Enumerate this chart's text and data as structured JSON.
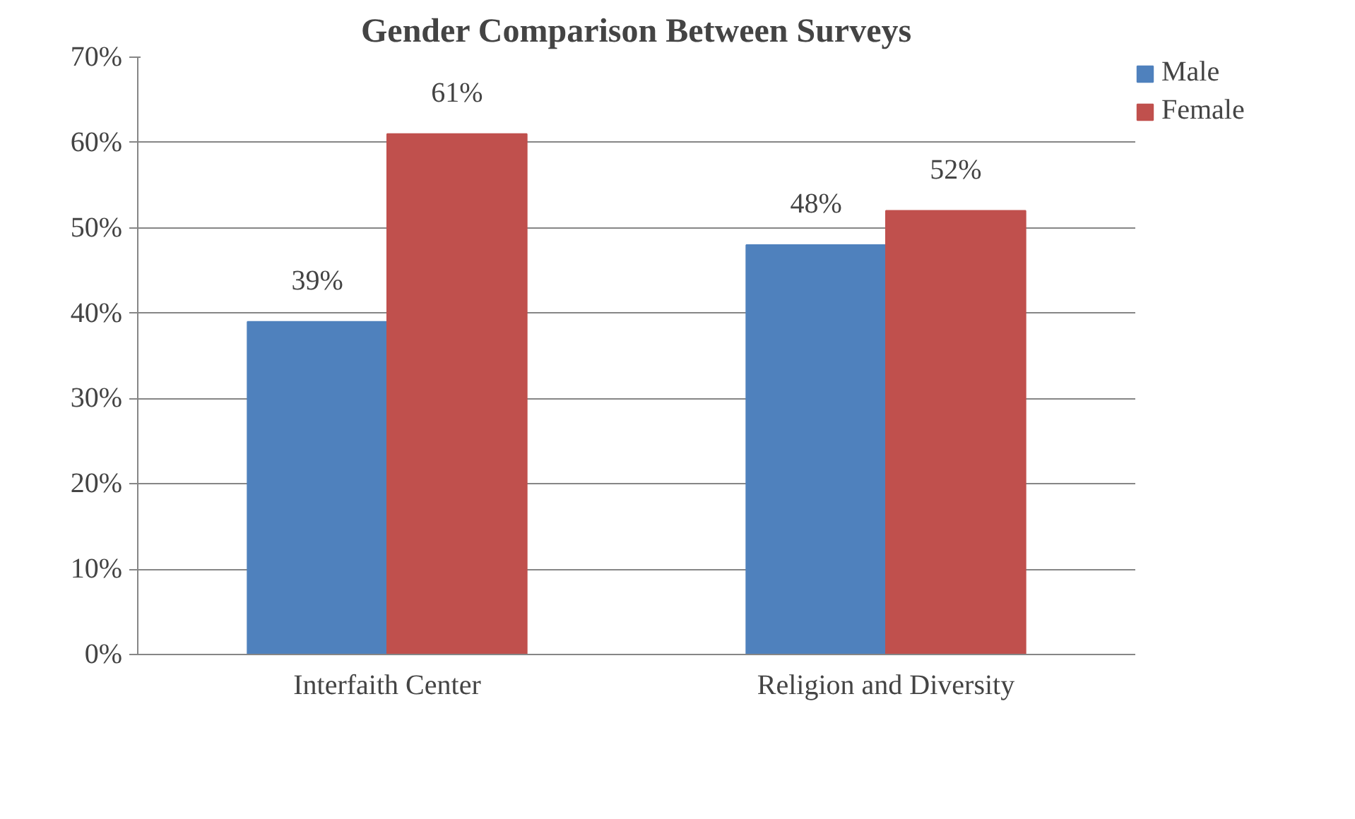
{
  "chart_data": {
    "type": "bar",
    "title": "Gender Comparison Between Surveys",
    "categories": [
      "Interfaith Center",
      "Religion and Diversity"
    ],
    "series": [
      {
        "name": "Male",
        "color": "#4f81bd",
        "values": [
          39,
          48
        ],
        "value_labels": [
          "39%",
          "48%"
        ]
      },
      {
        "name": "Female",
        "color": "#c0504d",
        "values": [
          61,
          52
        ],
        "value_labels": [
          "61%",
          "52%"
        ]
      }
    ],
    "ylim": [
      0,
      70
    ],
    "yticks": [
      {
        "value": 0,
        "label": "0%"
      },
      {
        "value": 10,
        "label": "10%"
      },
      {
        "value": 20,
        "label": "20%"
      },
      {
        "value": 30,
        "label": "30%"
      },
      {
        "value": 40,
        "label": "40%"
      },
      {
        "value": 50,
        "label": "50%"
      },
      {
        "value": 60,
        "label": "60%"
      },
      {
        "value": 70,
        "label": "70%"
      }
    ],
    "grid": "y",
    "legend": "right"
  }
}
